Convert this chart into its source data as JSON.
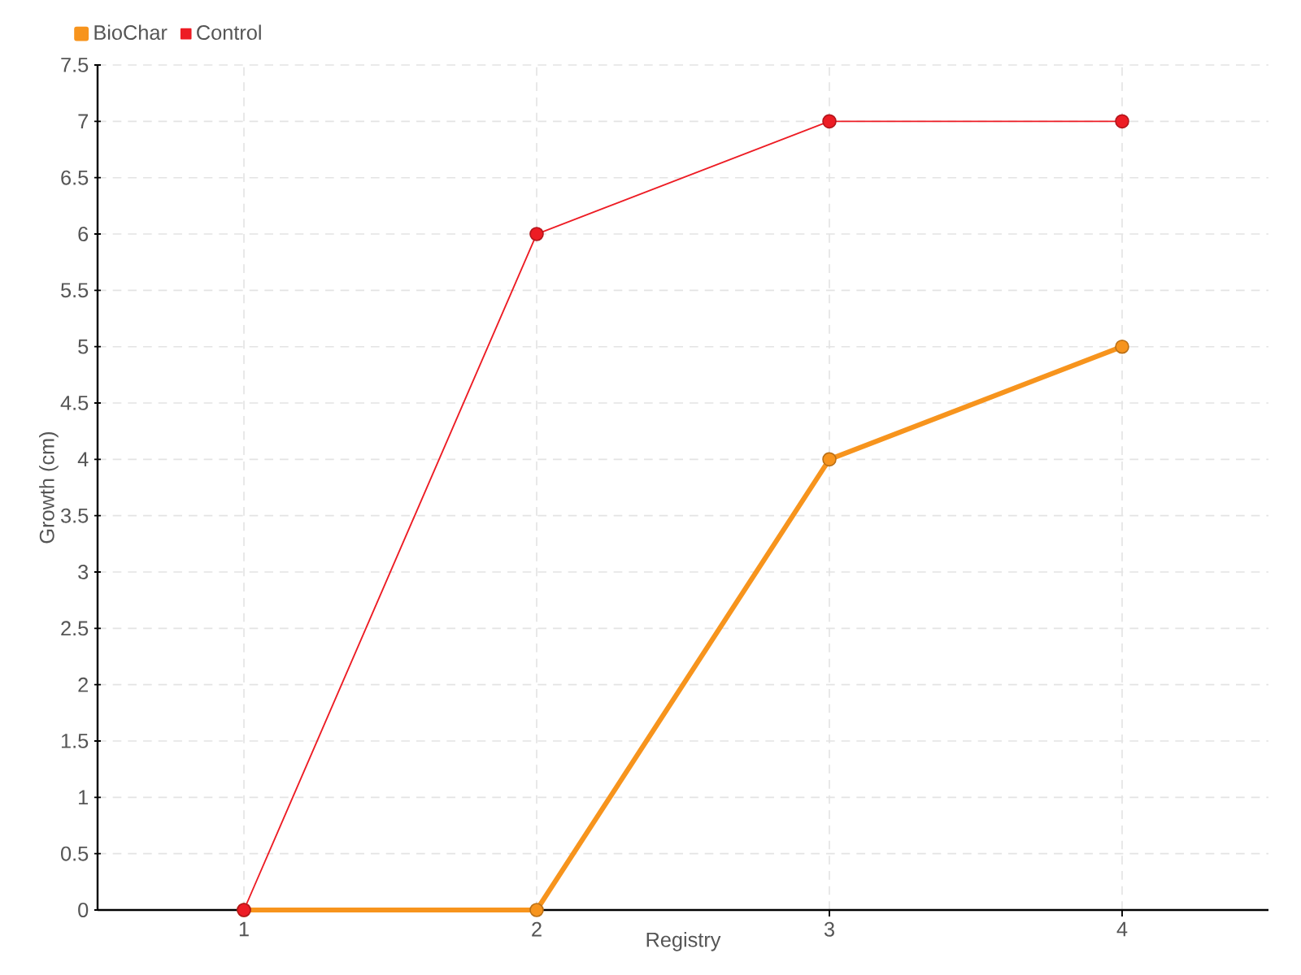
{
  "chart_data": {
    "type": "line",
    "xlabel": "Registry",
    "ylabel": "Growth (cm)",
    "categories": [
      "1",
      "2",
      "3",
      "4"
    ],
    "series": [
      {
        "name": "BioChar",
        "color": "#f7941d",
        "values": [
          0,
          0,
          4,
          5
        ]
      },
      {
        "name": "Control",
        "color": "#ed1c24",
        "values": [
          0,
          6,
          7,
          7
        ]
      }
    ],
    "ylim": [
      0,
      7.5
    ],
    "yticks": [
      0,
      0.5,
      1,
      1.5,
      2,
      2.5,
      3,
      3.5,
      4,
      4.5,
      5,
      5.5,
      6,
      6.5,
      7,
      7.5
    ],
    "grid": true,
    "legend": "top left",
    "marker": "circle",
    "line_style": "solid"
  }
}
